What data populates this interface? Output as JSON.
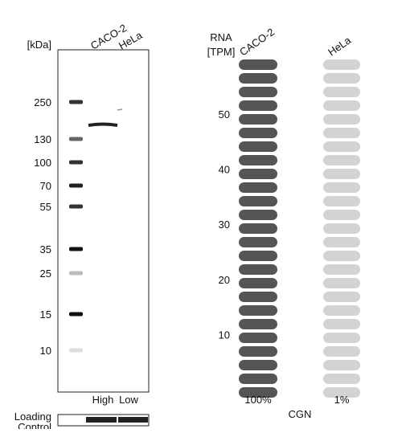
{
  "blot": {
    "unit_label": "[kDa]",
    "markers": [
      "250",
      "130",
      "100",
      "70",
      "55",
      "35",
      "25",
      "15",
      "10"
    ],
    "lanes": [
      "CACO-2",
      "HeLa"
    ],
    "levels": [
      "High",
      "Low"
    ],
    "loading_control": [
      "Loading",
      "Control"
    ]
  },
  "rna": {
    "label": [
      "RNA",
      "[TPM]"
    ],
    "samples": [
      "CACO-2",
      "HeLa"
    ],
    "ticks": [
      50,
      40,
      30,
      20,
      10
    ],
    "percentages": [
      "100%",
      "1%"
    ],
    "gene": "CGN"
  }
}
